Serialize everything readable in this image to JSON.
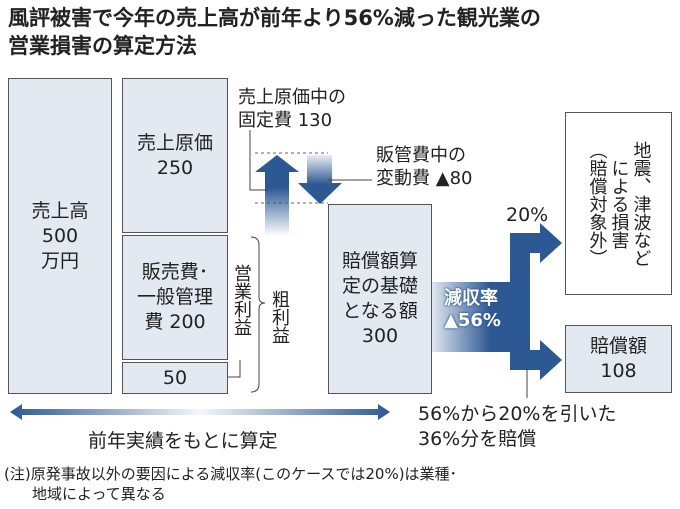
{
  "title": [
    "風評被害で今年の売上高が前年より56%減った観光業の",
    "営業損害の算定方法"
  ],
  "boxes": {
    "sales": [
      "売上高",
      "500",
      "万円"
    ],
    "cost_of_sales": [
      "売上原価",
      "250"
    ],
    "sga": [
      "販売費･",
      "一般管理",
      "費 200"
    ],
    "operating_profit_value": "50",
    "base_amount": [
      "賠償額算",
      "定の基礎",
      "となる額",
      "300"
    ],
    "excluded": [
      "地震、津波など",
      "による損害",
      "（賠償対象外）"
    ],
    "compensation": [
      "賠償額",
      "108"
    ]
  },
  "labels": {
    "fixed_cost": [
      "売上原価中の",
      "固定費 130"
    ],
    "variable_cost": [
      "販管費中の",
      "変動費 ▲80"
    ],
    "operating_profit": "営業利益",
    "gross_profit": "粗利益",
    "rate_20": "20%",
    "decline_rate": [
      "減収率",
      "▲56%"
    ],
    "compensation_note": [
      "56%から20%を引いた",
      "36%分を賠償"
    ],
    "prior_year": "前年実績をもとに算定"
  },
  "footnote": [
    "(注)原発事故以外の要因による減収率(このケースでは20%)は業種･",
    "地域によって異なる"
  ],
  "colors": {
    "arrow": "#2c5894",
    "box_fill": "#e3e9f1",
    "border": "#555555"
  }
}
